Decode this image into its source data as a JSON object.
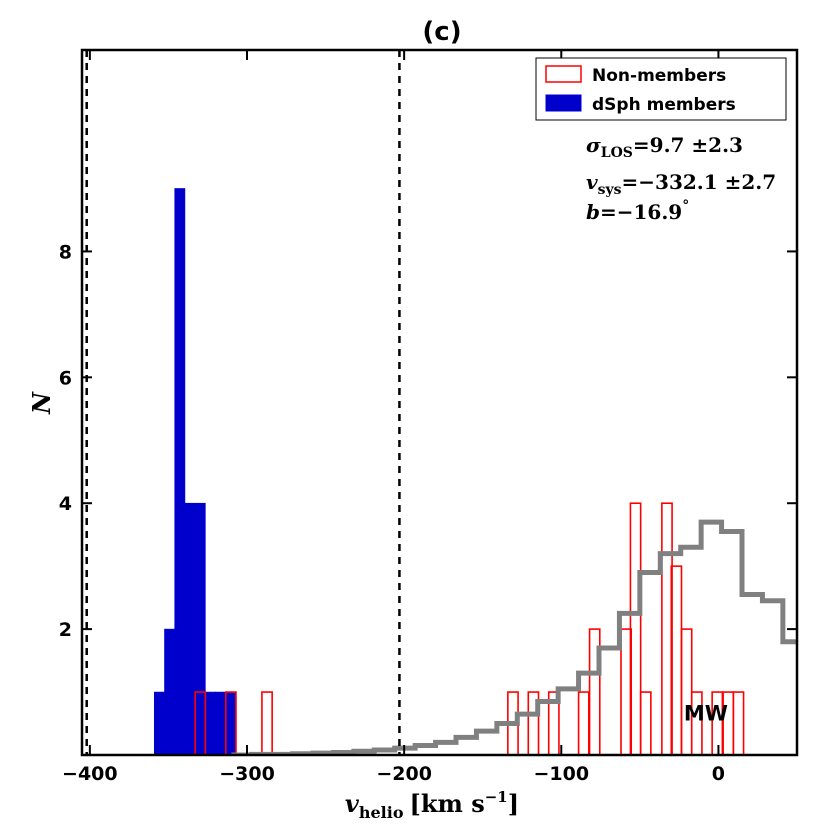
{
  "chart_data": {
    "type": "histogram",
    "title": "(c)",
    "xlabel": "v_helio [km s^-1]",
    "xlabel_parts": {
      "var": "v",
      "sub": "helio",
      "unit_pre": "[km s",
      "sup": "−1",
      "unit_post": "]"
    },
    "ylabel": "N",
    "xlim": [
      -405,
      50
    ],
    "ylim": [
      0,
      11.2
    ],
    "x_ticks": [
      -400,
      -300,
      -200,
      -100,
      0
    ],
    "x_tick_labels": [
      "−400",
      "−300",
      "−200",
      "−100",
      "0"
    ],
    "y_ticks": [
      2,
      4,
      6,
      8
    ],
    "y_tick_labels": [
      "2",
      "4",
      "6",
      "8"
    ],
    "dashed_lines_x": [
      -402,
      -203
    ],
    "bin_width": 6.5,
    "series": [
      {
        "name": "dSph members",
        "style": "filled",
        "color": "#0000cc",
        "bin_starts": [
          -359,
          -352.5,
          -346,
          -339.5,
          -333,
          -326.5,
          -320,
          -313.5
        ],
        "counts": [
          1,
          2,
          9,
          4,
          4,
          1,
          1,
          1
        ]
      },
      {
        "name": "Non-members",
        "style": "step-outline",
        "color": "#ff0000",
        "bin_starts": [
          -333,
          -313.5,
          -290.5,
          -134,
          -121,
          -108,
          -89,
          -82,
          -62,
          -56,
          -49.5,
          -36,
          -30,
          -23.5,
          -17,
          -4,
          3,
          9.5
        ],
        "counts": [
          1,
          1,
          1,
          1,
          1,
          1,
          1,
          2,
          2,
          4,
          1,
          4,
          3,
          2,
          1,
          1,
          1,
          1
        ]
      },
      {
        "name": "MW",
        "style": "step-line",
        "color": "#808080",
        "edges": [
          -310,
          -297,
          -284,
          -271,
          -258,
          -245,
          -232,
          -219,
          -206,
          -193,
          -180,
          -167,
          -154,
          -141,
          -128,
          -115,
          -102,
          -89,
          -76,
          -63,
          -50,
          -37,
          -24,
          -11,
          2,
          15,
          28,
          41,
          54
        ],
        "values": [
          0,
          0.01,
          0.01,
          0.02,
          0.03,
          0.04,
          0.06,
          0.08,
          0.11,
          0.15,
          0.2,
          0.28,
          0.38,
          0.5,
          0.65,
          0.85,
          1.05,
          1.3,
          1.7,
          2.25,
          2.9,
          3.2,
          3.3,
          3.7,
          3.55,
          2.55,
          2.45,
          1.8
        ]
      }
    ],
    "legend": {
      "placement": "top-right",
      "entries": [
        "Non-members",
        "dSph members"
      ]
    },
    "annotations": {
      "sigma": {
        "sym": "σ",
        "sub": "LOS",
        "text": "=9.7 ±2.3"
      },
      "vsys": {
        "sym": "v",
        "sub": "sys",
        "text": "=−332.1 ±2.7"
      },
      "b": {
        "sym": "b",
        "text": "=−16.9",
        "sup": "°"
      },
      "mw_label": "MW",
      "mw_label_pos": {
        "x": -8,
        "y": 0.55
      }
    },
    "grid": false
  }
}
